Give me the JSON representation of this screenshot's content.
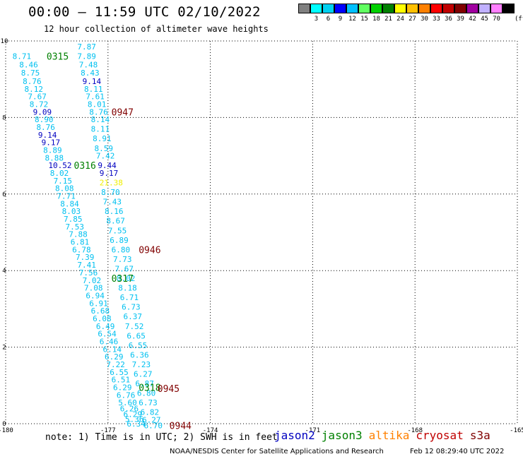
{
  "header": {
    "title": "00:00 – 11:59 UTC 02/10/2022",
    "subtitle": "12 hour collection of altimeter wave heights"
  },
  "colorbar": {
    "colors": [
      "#808080",
      "#00ffff",
      "#00d0f0",
      "#0000ff",
      "#00c0ff",
      "#60ff60",
      "#00d000",
      "#008000",
      "#ffff00",
      "#ffc000",
      "#ff8000",
      "#ff0000",
      "#c00000",
      "#800000",
      "#a000a0",
      "#c0b0ff",
      "#ff80ff",
      "#000000"
    ],
    "labels": [
      "",
      "3",
      "6",
      "9",
      "12",
      "15",
      "18",
      "21",
      "24",
      "27",
      "30",
      "33",
      "36",
      "39",
      "42",
      "45",
      "70",
      ""
    ],
    "unit": "(ft)"
  },
  "chart_data": {
    "type": "scatter",
    "title": "12 hour collection of altimeter wave heights",
    "xlim": [
      -180,
      -165
    ],
    "ylim": [
      0,
      10
    ],
    "x_ticks": [
      "-180",
      "-177",
      "-174",
      "-171",
      "-168",
      "-165"
    ],
    "y_ticks": [
      "0",
      "2",
      "4",
      "6",
      "8",
      "10"
    ],
    "grid": true,
    "points": [
      {
        "lon": -179.8,
        "lat": 9.6,
        "text": "8.71",
        "c": "#00c0f0"
      },
      {
        "lon": -179.6,
        "lat": 9.38,
        "text": "8.46",
        "c": "#00c0f0"
      },
      {
        "lon": -179.55,
        "lat": 9.17,
        "text": "8.75",
        "c": "#00c0f0"
      },
      {
        "lon": -179.5,
        "lat": 8.95,
        "text": "8.76",
        "c": "#00c0f0"
      },
      {
        "lon": -179.45,
        "lat": 8.75,
        "text": "8.12",
        "c": "#00c0f0"
      },
      {
        "lon": -179.35,
        "lat": 8.55,
        "text": "7.67",
        "c": "#00c0f0"
      },
      {
        "lon": -179.3,
        "lat": 8.35,
        "text": "8.72",
        "c": "#00c0f0"
      },
      {
        "lon": -179.2,
        "lat": 8.15,
        "text": "9.09",
        "c": "#0000c0"
      },
      {
        "lon": -179.15,
        "lat": 7.95,
        "text": "8.90",
        "c": "#00c0f0"
      },
      {
        "lon": -179.1,
        "lat": 7.75,
        "text": "8.76",
        "c": "#00c0f0"
      },
      {
        "lon": -179.05,
        "lat": 7.55,
        "text": "9.14",
        "c": "#0000c0"
      },
      {
        "lon": -178.95,
        "lat": 7.35,
        "text": "9.17",
        "c": "#0000c0"
      },
      {
        "lon": -178.9,
        "lat": 7.15,
        "text": "8.89",
        "c": "#00c0f0"
      },
      {
        "lon": -178.85,
        "lat": 6.95,
        "text": "8.88",
        "c": "#00c0f0"
      },
      {
        "lon": -178.75,
        "lat": 6.75,
        "text": "10.52",
        "c": "#0000c0"
      },
      {
        "lon": -178.7,
        "lat": 6.55,
        "text": "8.02",
        "c": "#00c0f0"
      },
      {
        "lon": -178.6,
        "lat": 6.35,
        "text": "7.15",
        "c": "#00c0f0"
      },
      {
        "lon": -178.55,
        "lat": 6.15,
        "text": "8.08",
        "c": "#00c0f0"
      },
      {
        "lon": -178.5,
        "lat": 5.95,
        "text": "7.71",
        "c": "#00c0f0"
      },
      {
        "lon": -178.4,
        "lat": 5.75,
        "text": "8.84",
        "c": "#00c0f0"
      },
      {
        "lon": -178.35,
        "lat": 5.55,
        "text": "8.03",
        "c": "#00c0f0"
      },
      {
        "lon": -178.3,
        "lat": 5.35,
        "text": "7.85",
        "c": "#00c0f0"
      },
      {
        "lon": -178.25,
        "lat": 5.15,
        "text": "7.53",
        "c": "#00c0f0"
      },
      {
        "lon": -178.15,
        "lat": 4.95,
        "text": "7.88",
        "c": "#00c0f0"
      },
      {
        "lon": -178.1,
        "lat": 4.75,
        "text": "6.81",
        "c": "#00c0f0"
      },
      {
        "lon": -178.05,
        "lat": 4.55,
        "text": "6.78",
        "c": "#00c0f0"
      },
      {
        "lon": -177.95,
        "lat": 4.35,
        "text": "7.39",
        "c": "#00c0f0"
      },
      {
        "lon": -177.9,
        "lat": 4.15,
        "text": "7.41",
        "c": "#00c0f0"
      },
      {
        "lon": -177.85,
        "lat": 3.95,
        "text": "7.56",
        "c": "#00c0f0"
      },
      {
        "lon": -177.75,
        "lat": 3.75,
        "text": "7.02",
        "c": "#00c0f0"
      },
      {
        "lon": -177.7,
        "lat": 3.55,
        "text": "7.08",
        "c": "#00c0f0"
      },
      {
        "lon": -177.65,
        "lat": 3.35,
        "text": "6.94",
        "c": "#00c0f0"
      },
      {
        "lon": -177.55,
        "lat": 3.15,
        "text": "6.91",
        "c": "#00c0f0"
      },
      {
        "lon": -177.5,
        "lat": 2.95,
        "text": "6.68",
        "c": "#00c0f0"
      },
      {
        "lon": -177.45,
        "lat": 2.75,
        "text": "6.08",
        "c": "#00c0f0"
      },
      {
        "lon": -177.35,
        "lat": 2.55,
        "text": "6.49",
        "c": "#00c0f0"
      },
      {
        "lon": -177.3,
        "lat": 2.35,
        "text": "6.54",
        "c": "#00c0f0"
      },
      {
        "lon": -177.25,
        "lat": 2.15,
        "text": "6.46",
        "c": "#00c0f0"
      },
      {
        "lon": -177.15,
        "lat": 1.95,
        "text": "6.14",
        "c": "#00c0f0"
      },
      {
        "lon": -177.1,
        "lat": 1.75,
        "text": "6.29",
        "c": "#00c0f0"
      },
      {
        "lon": -177.05,
        "lat": 1.55,
        "text": "7.22",
        "c": "#00c0f0"
      },
      {
        "lon": -176.95,
        "lat": 1.35,
        "text": "6.55",
        "c": "#00c0f0"
      },
      {
        "lon": -176.9,
        "lat": 1.15,
        "text": "6.51",
        "c": "#00c0f0"
      },
      {
        "lon": -176.85,
        "lat": 0.95,
        "text": "6.29",
        "c": "#00c0f0"
      },
      {
        "lon": -176.75,
        "lat": 0.75,
        "text": "6.76",
        "c": "#00c0f0"
      },
      {
        "lon": -176.7,
        "lat": 0.55,
        "text": "5.60",
        "c": "#00c0f0"
      },
      {
        "lon": -176.65,
        "lat": 0.4,
        "text": "6.26",
        "c": "#00c0f0"
      },
      {
        "lon": -176.55,
        "lat": 0.25,
        "text": "6.29",
        "c": "#00c0f0"
      },
      {
        "lon": -176.5,
        "lat": 0.12,
        "text": "5.36",
        "c": "#00c0f0"
      },
      {
        "lon": -176.45,
        "lat": 0.0,
        "text": "6.34",
        "c": "#00c0f0"
      },
      {
        "lon": -177.9,
        "lat": 9.85,
        "text": "7.87",
        "c": "#00c0f0"
      },
      {
        "lon": -177.9,
        "lat": 9.6,
        "text": "7.89",
        "c": "#00c0f0"
      },
      {
        "lon": -177.85,
        "lat": 9.38,
        "text": "7.48",
        "c": "#00c0f0"
      },
      {
        "lon": -177.8,
        "lat": 9.17,
        "text": "8.43",
        "c": "#00c0f0"
      },
      {
        "lon": -177.75,
        "lat": 8.95,
        "text": "9.14",
        "c": "#0000c0"
      },
      {
        "lon": -177.7,
        "lat": 8.75,
        "text": "8.11",
        "c": "#00c0f0"
      },
      {
        "lon": -177.65,
        "lat": 8.55,
        "text": "7.61",
        "c": "#00c0f0"
      },
      {
        "lon": -177.6,
        "lat": 8.35,
        "text": "8.01",
        "c": "#00c0f0"
      },
      {
        "lon": -177.55,
        "lat": 8.15,
        "text": "8.76",
        "c": "#00c0f0"
      },
      {
        "lon": -177.5,
        "lat": 7.95,
        "text": "8.14",
        "c": "#00c0f0"
      },
      {
        "lon": -177.5,
        "lat": 7.7,
        "text": "8.11",
        "c": "#00c0f0"
      },
      {
        "lon": -177.45,
        "lat": 7.45,
        "text": "8.91",
        "c": "#00c0f0"
      },
      {
        "lon": -177.4,
        "lat": 7.2,
        "text": "8.59",
        "c": "#00c0f0"
      },
      {
        "lon": -177.35,
        "lat": 7.0,
        "text": "7.42",
        "c": "#00c0f0"
      },
      {
        "lon": -177.3,
        "lat": 6.75,
        "text": "9.44",
        "c": "#0000c0"
      },
      {
        "lon": -177.25,
        "lat": 6.55,
        "text": "9.17",
        "c": "#0000c0"
      },
      {
        "lon": -177.25,
        "lat": 6.3,
        "text": "21.38",
        "c": "#f0f000"
      },
      {
        "lon": -177.2,
        "lat": 6.05,
        "text": "8.70",
        "c": "#00c0f0"
      },
      {
        "lon": -177.15,
        "lat": 5.8,
        "text": "7.43",
        "c": "#00c0f0"
      },
      {
        "lon": -177.1,
        "lat": 5.55,
        "text": "8.16",
        "c": "#00c0f0"
      },
      {
        "lon": -177.05,
        "lat": 5.3,
        "text": "8.67",
        "c": "#00c0f0"
      },
      {
        "lon": -177.0,
        "lat": 5.05,
        "text": "7.55",
        "c": "#00c0f0"
      },
      {
        "lon": -176.95,
        "lat": 4.8,
        "text": "6.89",
        "c": "#00c0f0"
      },
      {
        "lon": -176.9,
        "lat": 4.55,
        "text": "6.80",
        "c": "#00c0f0"
      },
      {
        "lon": -176.85,
        "lat": 4.3,
        "text": "7.73",
        "c": "#00c0f0"
      },
      {
        "lon": -176.8,
        "lat": 4.05,
        "text": "7.67",
        "c": "#00c0f0"
      },
      {
        "lon": -176.75,
        "lat": 3.8,
        "text": "8.02",
        "c": "#00c0f0"
      },
      {
        "lon": -176.7,
        "lat": 3.55,
        "text": "8.18",
        "c": "#00c0f0"
      },
      {
        "lon": -176.65,
        "lat": 3.3,
        "text": "6.71",
        "c": "#00c0f0"
      },
      {
        "lon": -176.6,
        "lat": 3.05,
        "text": "6.73",
        "c": "#00c0f0"
      },
      {
        "lon": -176.55,
        "lat": 2.8,
        "text": "6.37",
        "c": "#00c0f0"
      },
      {
        "lon": -176.5,
        "lat": 2.55,
        "text": "7.52",
        "c": "#00c0f0"
      },
      {
        "lon": -176.45,
        "lat": 2.3,
        "text": "6.65",
        "c": "#00c0f0"
      },
      {
        "lon": -176.4,
        "lat": 2.05,
        "text": "6.55",
        "c": "#00c0f0"
      },
      {
        "lon": -176.35,
        "lat": 1.8,
        "text": "6.36",
        "c": "#00c0f0"
      },
      {
        "lon": -176.3,
        "lat": 1.55,
        "text": "7.23",
        "c": "#00c0f0"
      },
      {
        "lon": -176.25,
        "lat": 1.3,
        "text": "6.27",
        "c": "#00c0f0"
      },
      {
        "lon": -176.2,
        "lat": 1.05,
        "text": "6.87",
        "c": "#00c0f0"
      },
      {
        "lon": -176.15,
        "lat": 0.8,
        "text": "6.80",
        "c": "#00c0f0"
      },
      {
        "lon": -176.1,
        "lat": 0.55,
        "text": "6.73",
        "c": "#00c0f0"
      },
      {
        "lon": -176.05,
        "lat": 0.3,
        "text": "6.82",
        "c": "#00c0f0"
      },
      {
        "lon": -176.0,
        "lat": 0.1,
        "text": "6.27",
        "c": "#00c0f0"
      },
      {
        "lon": -175.95,
        "lat": -0.05,
        "text": "6.70",
        "c": "#00c0f0"
      }
    ],
    "time_labels": [
      {
        "lon": -178.8,
        "lat": 9.6,
        "text": "0315",
        "c": "#008000"
      },
      {
        "lon": -176.9,
        "lat": 8.15,
        "text": "0947",
        "c": "#800000"
      },
      {
        "lon": -178.0,
        "lat": 6.75,
        "text": "0316",
        "c": "#008000"
      },
      {
        "lon": -176.1,
        "lat": 4.55,
        "text": "0946",
        "c": "#800000"
      },
      {
        "lon": -176.9,
        "lat": 3.8,
        "text": "0317",
        "c": "#008000"
      },
      {
        "lon": -176.1,
        "lat": 0.95,
        "text": "0318",
        "c": "#008000"
      },
      {
        "lon": -175.55,
        "lat": 0.92,
        "text": "0945",
        "c": "#800000"
      },
      {
        "lon": -175.2,
        "lat": -0.05,
        "text": "0944",
        "c": "#800000"
      }
    ]
  },
  "footer": {
    "note": "note:  1) Time is in UTC; 2) SWH is in feet",
    "legend": [
      {
        "name": "jason2",
        "color": "#0000c0"
      },
      {
        "name": "jason3",
        "color": "#008000"
      },
      {
        "name": "altika",
        "color": "#ff8000"
      },
      {
        "name": "cryosat",
        "color": "#c00000"
      },
      {
        "name": "s3a",
        "color": "#800000"
      }
    ],
    "credit": "NOAA/NESDIS Center for Satellite Applications and Research",
    "timestamp": "Feb 12 08:29:40 UTC 2022"
  }
}
